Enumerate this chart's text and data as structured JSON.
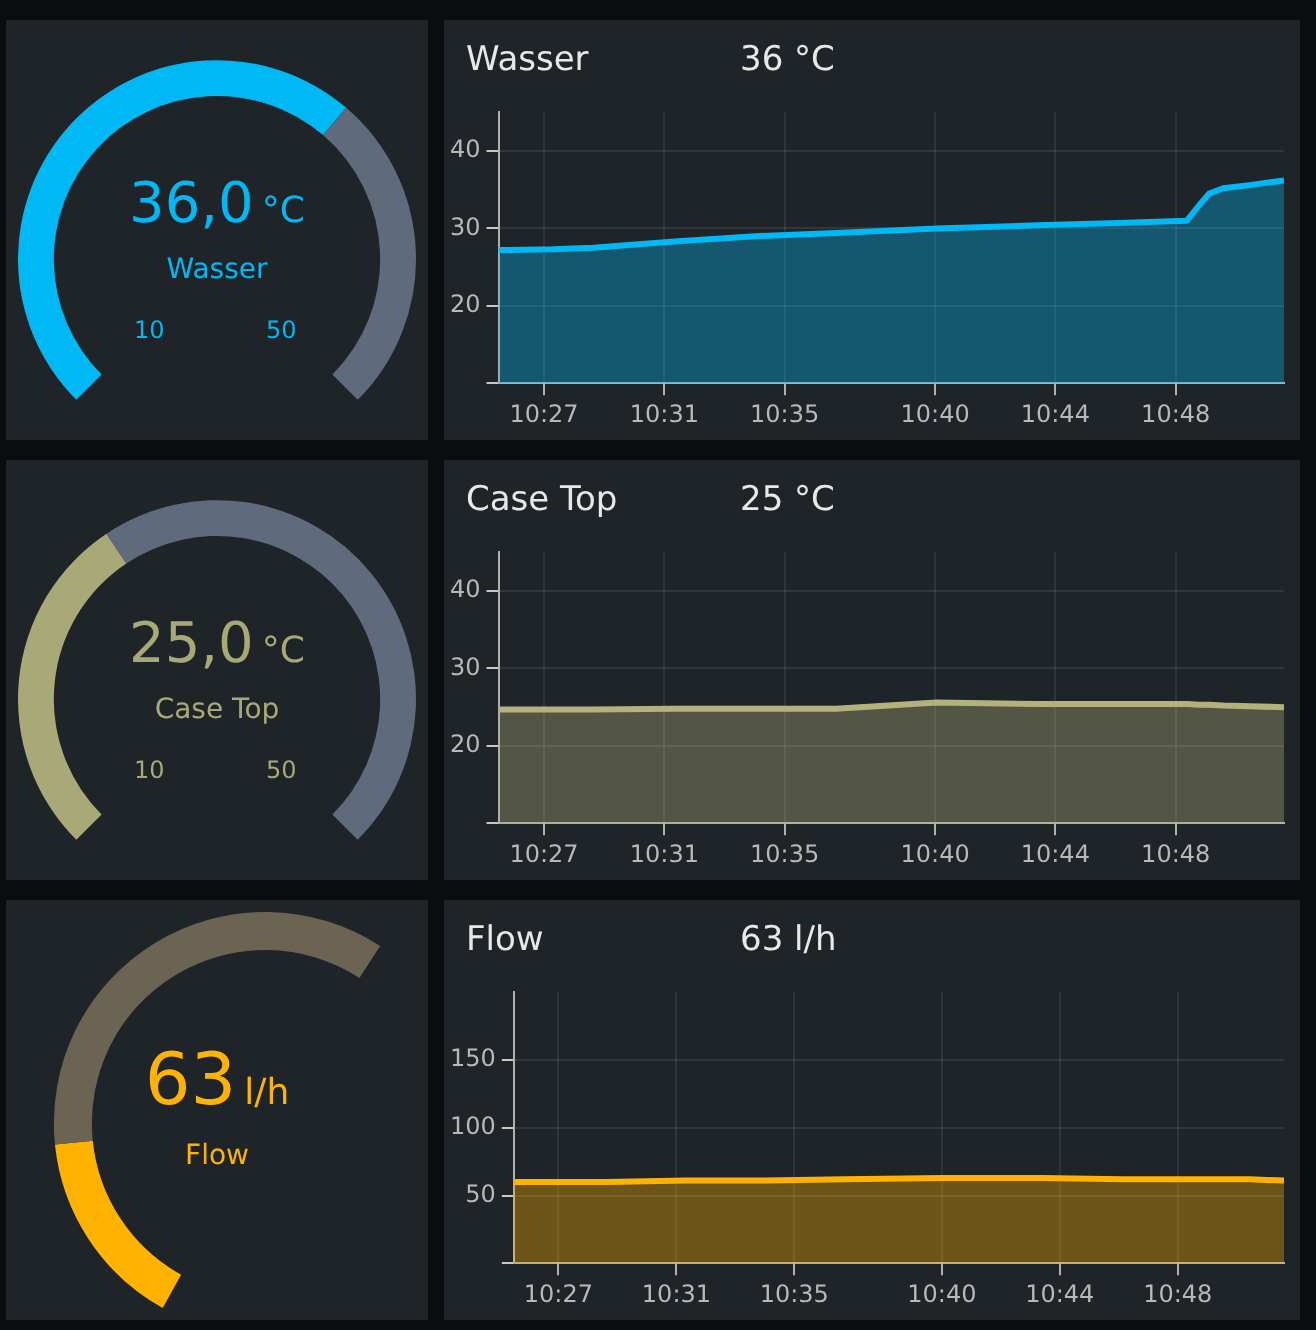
{
  "chart_data": [
    {
      "type": "donut",
      "title": "Wasser",
      "categories": [
        null,
        null
      ],
      "values": [
        65,
        35
      ],
      "colors": [
        "#00b8f4",
        "#5f6a7c"
      ],
      "annotations": [
        "36,0",
        "°C",
        "10",
        "50"
      ]
    },
    {
      "type": "area",
      "title": "Wasser",
      "subtitle": "36 °C",
      "x": [
        10.4248,
        10.455,
        10.4773,
        10.5222,
        10.5669,
        10.6117,
        10.6675,
        10.7235,
        10.7682,
        10.8062,
        10.813,
        10.8185,
        10.8263,
        10.8408,
        10.86
      ],
      "values": [
        27.2,
        27.3,
        27.5,
        28.3,
        29.0,
        29.4,
        30.0,
        30.4,
        30.7,
        31.0,
        33.0,
        34.5,
        35.2,
        35.6,
        36.2
      ],
      "color": "#00b8f4",
      "xlim": [
        10.4248,
        10.86
      ],
      "xticks": [
        {
          "value": 10.45,
          "label": "10:27"
        },
        {
          "value": 10.5167,
          "label": "10:31"
        },
        {
          "value": 10.5833,
          "label": "10:35"
        },
        {
          "value": 10.6667,
          "label": "10:40"
        },
        {
          "value": 10.7333,
          "label": "10:44"
        },
        {
          "value": 10.8,
          "label": "10:48"
        }
      ],
      "ylim": [
        10,
        45
      ],
      "yticks": [
        20,
        30,
        40
      ],
      "grid": true
    },
    {
      "type": "donut",
      "title": "Case Top",
      "categories": [
        null,
        null
      ],
      "values": [
        37.5,
        62.5
      ],
      "colors": [
        "#a9a877",
        "#5f6a7c"
      ],
      "annotations": [
        "25,0",
        "°C",
        "10",
        "50"
      ]
    },
    {
      "type": "area",
      "title": "Case Top",
      "subtitle": "25 °C",
      "x": [
        10.4248,
        10.455,
        10.4773,
        10.5222,
        10.5669,
        10.6117,
        10.6675,
        10.7235,
        10.7682,
        10.8062,
        10.813,
        10.8185,
        10.8263,
        10.8408,
        10.86
      ],
      "values": [
        24.7,
        24.7,
        24.7,
        24.8,
        24.8,
        24.8,
        25.6,
        25.4,
        25.4,
        25.4,
        25.3,
        25.3,
        25.2,
        25.1,
        25.0
      ],
      "color": "#b4b27c",
      "xlim": [
        10.4248,
        10.86
      ],
      "xticks": [
        {
          "value": 10.45,
          "label": "10:27"
        },
        {
          "value": 10.5167,
          "label": "10:31"
        },
        {
          "value": 10.5833,
          "label": "10:35"
        },
        {
          "value": 10.6667,
          "label": "10:40"
        },
        {
          "value": 10.7333,
          "label": "10:44"
        },
        {
          "value": 10.8,
          "label": "10:48"
        }
      ],
      "ylim": [
        10,
        45
      ],
      "yticks": [
        20,
        30,
        40
      ],
      "grid": true
    },
    {
      "type": "donut",
      "title": "Flow",
      "categories": [
        null,
        null
      ],
      "values": [
        30,
        70
      ],
      "colors": [
        "#ffb300",
        "#6b6453"
      ],
      "annotations": [
        "63",
        "l/h"
      ]
    },
    {
      "type": "area",
      "title": "Flow",
      "subtitle": "63 l/h",
      "x": [
        10.4248,
        10.455,
        10.4773,
        10.5222,
        10.5669,
        10.6117,
        10.6675,
        10.7235,
        10.7682,
        10.8062,
        10.813,
        10.8185,
        10.8263,
        10.8408,
        10.86
      ],
      "values": [
        60,
        60,
        60,
        61,
        61,
        62,
        63,
        63,
        62,
        62,
        62,
        62,
        62,
        62,
        61
      ],
      "color": "#ffb300",
      "xlim": [
        10.4248,
        10.86
      ],
      "xticks": [
        {
          "value": 10.45,
          "label": "10:27"
        },
        {
          "value": 10.5167,
          "label": "10:31"
        },
        {
          "value": 10.5833,
          "label": "10:35"
        },
        {
          "value": 10.6667,
          "label": "10:40"
        },
        {
          "value": 10.7333,
          "label": "10:44"
        },
        {
          "value": 10.8,
          "label": "10:48"
        }
      ],
      "ylim": [
        0,
        200
      ],
      "yticks": [
        50,
        100,
        150
      ],
      "grid": true
    }
  ]
}
